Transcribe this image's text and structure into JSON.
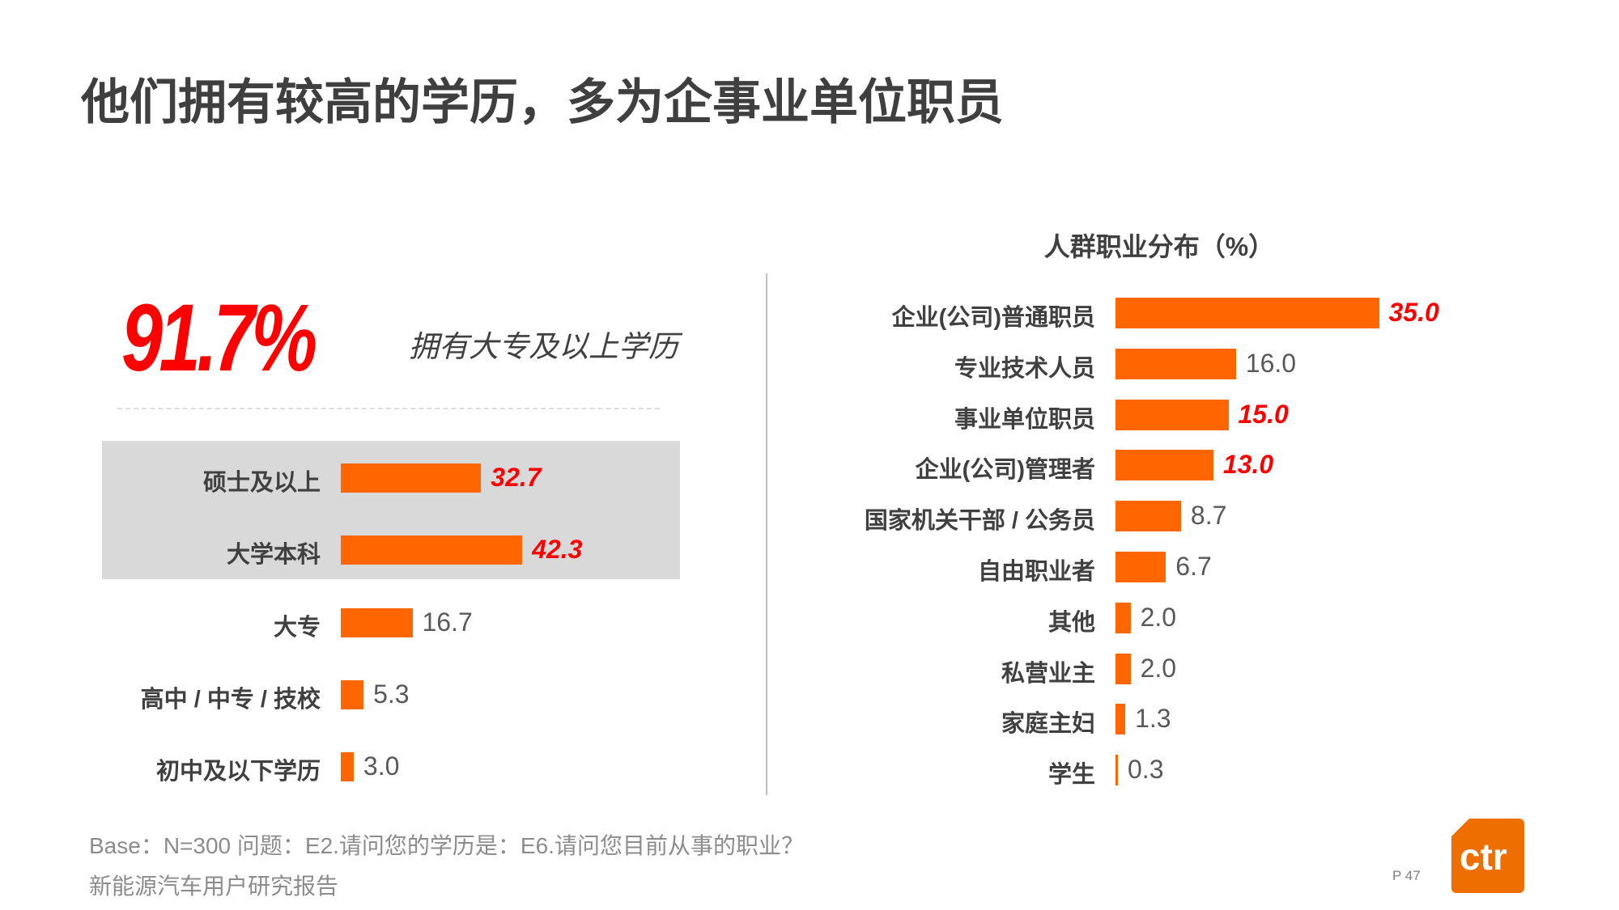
{
  "title": "他们拥有较高的学历，多为企事业单位职员",
  "highlight": {
    "value": "91.7%",
    "caption": "拥有大专及以上学历"
  },
  "logo_text": "ctr",
  "footer": {
    "line1": "Base：N=300    问题：E2.请问您的学历是：E6.请问您目前从事的职业？",
    "line2": "新能源汽车用户研究报告",
    "page": "P 47"
  },
  "colors": {
    "bar": "#ff6600",
    "highlight": "#ff0000",
    "box": "#d9d9d9"
  },
  "chart_data": [
    {
      "type": "bar",
      "orientation": "horizontal",
      "title": "",
      "categories": [
        "硕士及以上",
        "大学本科",
        "大专",
        "高中 / 中专 / 技校",
        "初中及以下学历"
      ],
      "values": [
        32.7,
        42.3,
        16.7,
        5.3,
        3.0
      ],
      "labels": [
        "32.7",
        "42.3",
        "16.7",
        "5.3",
        "3.0"
      ],
      "highlighted": [
        true,
        true,
        false,
        false,
        false
      ]
    },
    {
      "type": "bar",
      "orientation": "horizontal",
      "title": "人群职业分布（%）",
      "categories": [
        "企业(公司)普通职员",
        "专业技术人员",
        "事业单位职员",
        "企业(公司)管理者",
        "国家机关干部 / 公务员",
        "自由职业者",
        "其他",
        "私营业主",
        "家庭主妇",
        "学生"
      ],
      "values": [
        35.0,
        16.0,
        15.0,
        13.0,
        8.7,
        6.7,
        2.0,
        2.0,
        1.3,
        0.3
      ],
      "labels": [
        "35.0",
        "16.0",
        "15.0",
        "13.0",
        "8.7",
        "6.7",
        "2.0",
        "2.0",
        "1.3",
        "0.3"
      ],
      "highlighted": [
        true,
        false,
        true,
        true,
        false,
        false,
        false,
        false,
        false,
        false
      ]
    }
  ]
}
